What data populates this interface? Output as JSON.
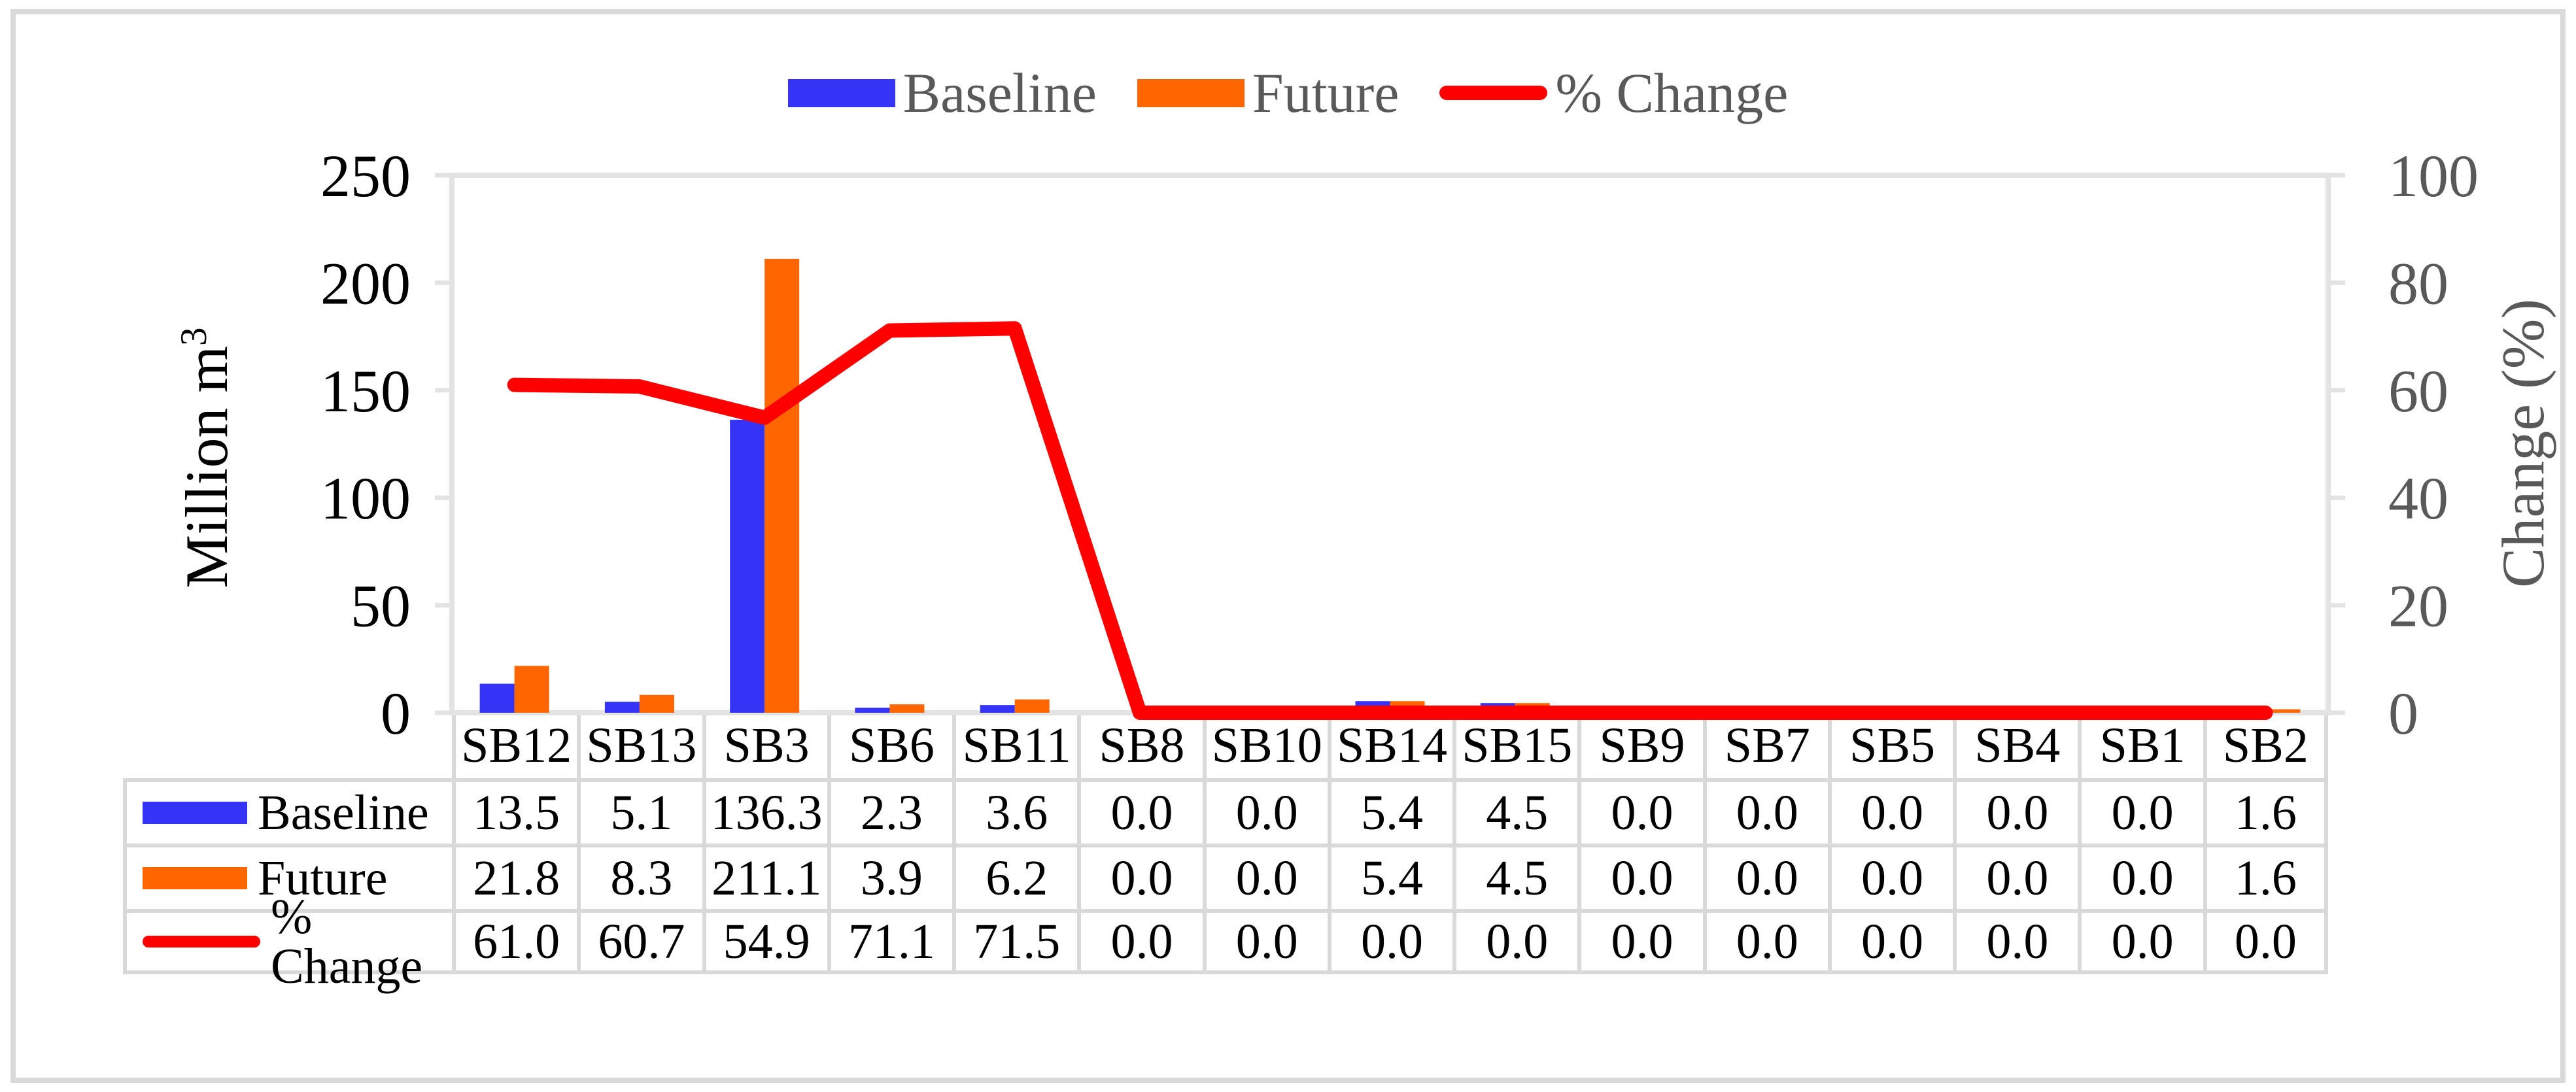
{
  "figure": {
    "colors": {
      "baseline": "#3533F6",
      "future": "#FF6600",
      "pct_change": "#FF0000",
      "grid": "#D9D9D9",
      "plot_border": "#E3E3E3",
      "text_secondary": "#595959"
    }
  },
  "legend": {
    "items": [
      {
        "label": "Baseline"
      },
      {
        "label": "Future"
      },
      {
        "label": "% Change"
      }
    ]
  },
  "chart_data": {
    "type": "combo-bar-line",
    "categories": [
      "SB12",
      "SB13",
      "SB3",
      "SB6",
      "SB11",
      "SB8",
      "SB10",
      "SB14",
      "SB15",
      "SB9",
      "SB7",
      "SB5",
      "SB4",
      "SB1",
      "SB2"
    ],
    "series": [
      {
        "name": "Baseline",
        "type": "bar",
        "axis": "left",
        "color": "#3533F6",
        "values": [
          13.5,
          5.1,
          136.3,
          2.3,
          3.6,
          0.0,
          0.0,
          5.4,
          4.5,
          0.0,
          0.0,
          0.0,
          0.0,
          0.0,
          1.6
        ]
      },
      {
        "name": "Future",
        "type": "bar",
        "axis": "left",
        "color": "#FF6600",
        "values": [
          21.8,
          8.3,
          211.1,
          3.9,
          6.2,
          0.0,
          0.0,
          5.4,
          4.5,
          0.0,
          0.0,
          0.0,
          0.0,
          0.0,
          1.6
        ]
      },
      {
        "name": "% Change",
        "type": "line",
        "axis": "right",
        "color": "#FF0000",
        "values": [
          61.0,
          60.7,
          54.9,
          71.1,
          71.5,
          0.0,
          0.0,
          0.0,
          0.0,
          0.0,
          0.0,
          0.0,
          0.0,
          0.0,
          0.0
        ]
      }
    ],
    "left_axis": {
      "title_base": "Million m",
      "title_sup": "3",
      "ticks": [
        0,
        50,
        100,
        150,
        200,
        250
      ],
      "min": 0,
      "max": 250
    },
    "right_axis": {
      "title": "Change (%)",
      "ticks": [
        0,
        20,
        40,
        60,
        80,
        100
      ],
      "min": 0,
      "max": 100
    },
    "grid": false,
    "legend_position": "top"
  },
  "table": {
    "column_headers": [
      "SB12",
      "SB13",
      "SB3",
      "SB6",
      "SB11",
      "SB8",
      "SB10",
      "SB14",
      "SB15",
      "SB9",
      "SB7",
      "SB5",
      "SB4",
      "SB1",
      "SB2"
    ],
    "rows": [
      {
        "label": "Baseline",
        "swatch": "bar",
        "values": [
          "13.5",
          "5.1",
          "136.3",
          "2.3",
          "3.6",
          "0.0",
          "0.0",
          "5.4",
          "4.5",
          "0.0",
          "0.0",
          "0.0",
          "0.0",
          "0.0",
          "1.6"
        ]
      },
      {
        "label": "Future",
        "swatch": "bar",
        "values": [
          "21.8",
          "8.3",
          "211.1",
          "3.9",
          "6.2",
          "0.0",
          "0.0",
          "5.4",
          "4.5",
          "0.0",
          "0.0",
          "0.0",
          "0.0",
          "0.0",
          "1.6"
        ]
      },
      {
        "label": "% Change",
        "swatch": "line",
        "values": [
          "61.0",
          "60.7",
          "54.9",
          "71.1",
          "71.5",
          "0.0",
          "0.0",
          "0.0",
          "0.0",
          "0.0",
          "0.0",
          "0.0",
          "0.0",
          "0.0",
          "0.0"
        ]
      }
    ]
  }
}
